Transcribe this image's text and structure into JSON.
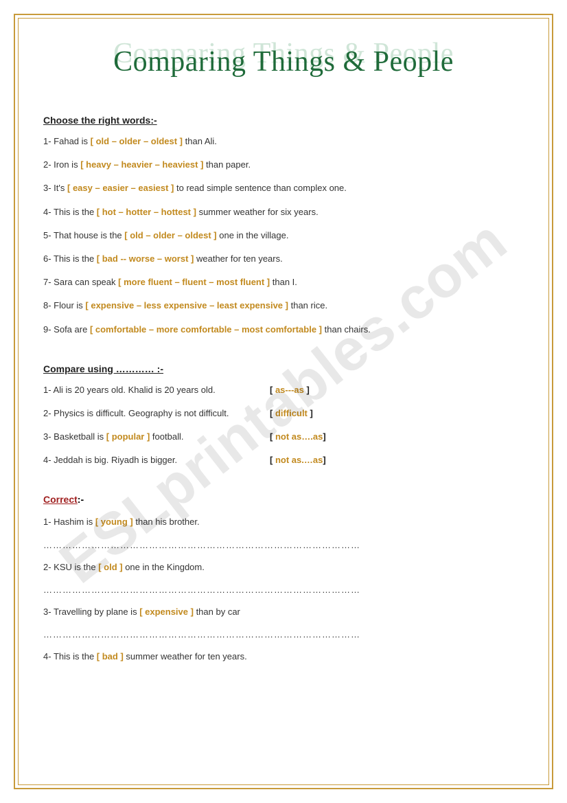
{
  "watermark": "ESLprintables.com",
  "title": "Comparing Things & People",
  "colors": {
    "frame": "#c89a3a",
    "title_shadow": "#cfe5d7",
    "title_main": "#1f6b3a",
    "bracket": "#c28a1f",
    "correct_heading": "#a02020",
    "body_text": "#333333",
    "background": "#ffffff"
  },
  "section1": {
    "heading": "Choose the right words:-",
    "items": [
      {
        "num": "1-",
        "pre": "Fahad is ",
        "bracket": "[ old – older – oldest ]",
        "post": " than Ali."
      },
      {
        "num": "2-",
        "pre": "Iron is ",
        "bracket": "[ heavy – heavier – heaviest ]",
        "post": " than paper."
      },
      {
        "num": "3-",
        "pre": "It's ",
        "bracket": "[ easy – easier – easiest ]",
        "post": " to read simple sentence than complex one."
      },
      {
        "num": "4-",
        "pre": "This is the ",
        "bracket": "[ hot – hotter – hottest ]",
        "post": " summer weather for six years."
      },
      {
        "num": "5-",
        "pre": "That house is the ",
        "bracket": "[ old – older – oldest ]",
        "post": " one in the village."
      },
      {
        "num": "6-",
        "pre": "This is the ",
        "bracket": "[ bad -- worse – worst ]",
        "post": " weather for ten years."
      },
      {
        "num": "7-",
        "pre": "Sara can speak ",
        "bracket": "[ more fluent – fluent – most fluent ]",
        "post": " than I."
      },
      {
        "num": "8-",
        "pre": "Flour is ",
        "bracket": "[ expensive – less expensive – least expensive ]",
        "post": " than rice."
      },
      {
        "num": "9-",
        "pre": "Sofa are ",
        "bracket": "[ comfortable – more comfortable – most comfortable ]",
        "post": " than chairs."
      }
    ]
  },
  "section2": {
    "heading": "Compare using ………… :-",
    "items": [
      {
        "num": "1-",
        "text": "Ali is 20 years old. Khalid is 20 years old.",
        "hint_open": "[  ",
        "hint": "as---as",
        "hint_close": "  ]"
      },
      {
        "num": "2-",
        "text": "Physics is difficult. Geography is not difficult.",
        "hint_open": "[  ",
        "hint": "difficult",
        "hint_close": "  ]"
      },
      {
        "num": " 3-",
        "text_pre": "Basketball is ",
        "bracket": "[ popular ]",
        "text_post": " football.",
        "hint_open": "[ ",
        "hint": "not as….as",
        "hint_close": "]"
      },
      {
        "num": "4-",
        "text": "Jeddah is big. Riyadh is bigger.",
        "hint_open": "[ ",
        "hint": "not as.…as",
        "hint_close": "]"
      }
    ]
  },
  "section3": {
    "heading": "Correct",
    "heading_suffix": ":-",
    "items": [
      {
        "num": "1-",
        "pre": "Hashim is ",
        "bracket": "[ young ]",
        "post": " than his brother."
      },
      {
        "num": "2-",
        "pre": "KSU is the ",
        "bracket": "[ old ]",
        "post": " one in the Kingdom."
      },
      {
        "num": "3-",
        "pre": "Travelling by plane is ",
        "bracket": "[ expensive ]",
        "post": " than by car"
      },
      {
        "num": "4-",
        "pre": "This is the ",
        "bracket": "[ bad ]",
        "post": " summer weather for ten years."
      }
    ],
    "blank": "………………………………………………………………………………………"
  }
}
